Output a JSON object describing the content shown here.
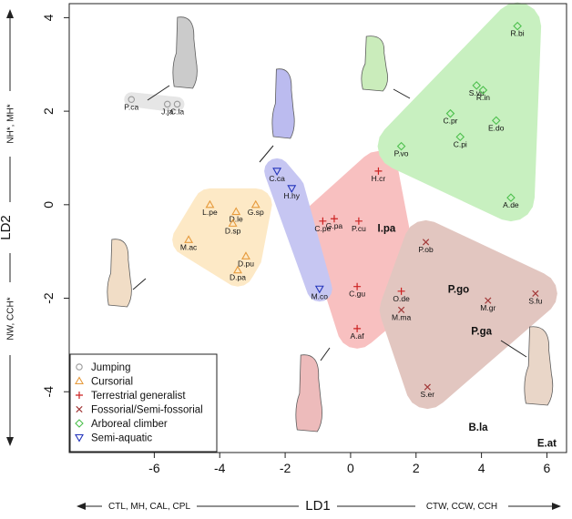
{
  "chart_data": {
    "type": "scatter",
    "xlabel": "LD1",
    "ylabel": "LD2",
    "xlim": [
      -8.6,
      6.6
    ],
    "ylim": [
      -5.3,
      4.3
    ],
    "xticks": [
      -6,
      -4,
      -2,
      0,
      2,
      4,
      6
    ],
    "yticks": [
      -4,
      -2,
      0,
      2,
      4
    ],
    "x_annotation_left": "CTL, MH, CAL, CPL",
    "x_annotation_right": "CTW, CCW, CCH",
    "y_annotation_top": "NH*, MH*",
    "y_annotation_bottom": "NW, CCH*",
    "grid": false,
    "legend_position": "bottom-left",
    "series": [
      {
        "name": "Jumping",
        "marker": "circle",
        "color": "#9a9a9a",
        "hull": "#e6e6e6",
        "points": [
          {
            "label": "P.ca",
            "x": -6.7,
            "y": 2.25
          },
          {
            "label": "J.ja",
            "x": -5.6,
            "y": 2.15
          },
          {
            "label": "C.la",
            "x": -5.3,
            "y": 2.15
          }
        ]
      },
      {
        "name": "Cursorial",
        "marker": "triangle",
        "color": "#e69a3c",
        "hull": "#fde9c6",
        "points": [
          {
            "label": "L.pe",
            "x": -4.3,
            "y": 0.0
          },
          {
            "label": "D.le",
            "x": -3.5,
            "y": -0.15
          },
          {
            "label": "G.sp",
            "x": -2.9,
            "y": 0.0
          },
          {
            "label": "D.sp",
            "x": -3.6,
            "y": -0.4
          },
          {
            "label": "M.ac",
            "x": -4.95,
            "y": -0.75
          },
          {
            "label": "D.pu",
            "x": -3.2,
            "y": -1.1
          },
          {
            "label": "D.pa",
            "x": -3.45,
            "y": -1.4
          }
        ]
      },
      {
        "name": "Terrestrial generalist",
        "marker": "plus",
        "color": "#cc2222",
        "hull": "#f8c0c0",
        "points": [
          {
            "label": "H.cr",
            "x": 0.85,
            "y": 0.72
          },
          {
            "label": "C.pe",
            "x": -0.85,
            "y": -0.35
          },
          {
            "label": "G.pa",
            "x": -0.5,
            "y": -0.3
          },
          {
            "label": "P.cu",
            "x": 0.25,
            "y": -0.35
          },
          {
            "label": "C.gu",
            "x": 0.2,
            "y": -1.75
          },
          {
            "label": "O.de",
            "x": 1.55,
            "y": -1.85
          },
          {
            "label": "A.af",
            "x": 0.2,
            "y": -2.65
          }
        ]
      },
      {
        "name": "Fossorial/Semi-fossorial",
        "marker": "x",
        "color": "#a33a3a",
        "hull": "#e2c6c0",
        "points": [
          {
            "label": "P.ob",
            "x": 2.3,
            "y": -0.8
          },
          {
            "label": "M.ma",
            "x": 1.55,
            "y": -2.25
          },
          {
            "label": "M.gr",
            "x": 4.2,
            "y": -2.05
          },
          {
            "label": "S.fu",
            "x": 5.65,
            "y": -1.9
          },
          {
            "label": "S.er",
            "x": 2.35,
            "y": -3.9
          }
        ]
      },
      {
        "name": "Arboreal climber",
        "marker": "diamond",
        "color": "#4cbf4c",
        "hull": "#c8f0c0",
        "points": [
          {
            "label": "R.bi",
            "x": 5.1,
            "y": 3.82
          },
          {
            "label": "S.vu",
            "x": 3.85,
            "y": 2.55
          },
          {
            "label": "R.in",
            "x": 4.05,
            "y": 2.45
          },
          {
            "label": "C.pr",
            "x": 3.05,
            "y": 1.95
          },
          {
            "label": "E.do",
            "x": 4.45,
            "y": 1.8
          },
          {
            "label": "C.pi",
            "x": 3.35,
            "y": 1.45
          },
          {
            "label": "P.vo",
            "x": 1.55,
            "y": 1.25
          },
          {
            "label": "A.de",
            "x": 4.9,
            "y": 0.15
          }
        ]
      },
      {
        "name": "Semi-aquatic",
        "marker": "triangle-down",
        "color": "#2233bb",
        "hull": "#c6c6f2",
        "points": [
          {
            "label": "C.ca",
            "x": -2.25,
            "y": 0.72
          },
          {
            "label": "H.hy",
            "x": -1.8,
            "y": 0.35
          },
          {
            "label": "M.co",
            "x": -0.95,
            "y": -1.8
          }
        ]
      }
    ],
    "annotations": [
      {
        "text": "I.pa",
        "x": 1.1,
        "y": -0.5
      },
      {
        "text": "P.go",
        "x": 3.3,
        "y": -1.8
      },
      {
        "text": "P.ga",
        "x": 4.0,
        "y": -2.7
      },
      {
        "text": "B.la",
        "x": 3.9,
        "y": -4.75
      },
      {
        "text": "E.at",
        "x": 6.0,
        "y": -5.1
      }
    ]
  }
}
